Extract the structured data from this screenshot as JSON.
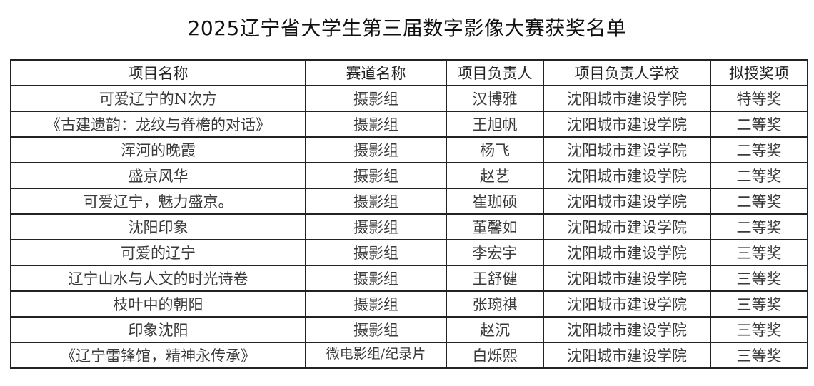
{
  "title": "2025辽宁省大学生第三届数字影像大赛获奖名单",
  "headers": [
    "项目名称",
    "赛道名称",
    "项目负责人",
    "项目负责人学校",
    "拟授奖项"
  ],
  "rows": [
    [
      "可爱辽宁的N次方",
      "摄影组",
      "汉博雅",
      "沈阳城市建设学院",
      "特等奖"
    ],
    [
      "《古建遗韵：龙纹与脊檐的对话》",
      "摄影组",
      "王旭帆",
      "沈阳城市建设学院",
      "二等奖"
    ],
    [
      "浑河的晚霞",
      "摄影组",
      "杨飞",
      "沈阳城市建设学院",
      "二等奖"
    ],
    [
      "盛京风华",
      "摄影组",
      "赵艺",
      "沈阳城市建设学院",
      "二等奖"
    ],
    [
      "可爱辽宁，魅力盛京。",
      "摄影组",
      "崔珈硕",
      "沈阳城市建设学院",
      "二等奖"
    ],
    [
      "沈阳印象",
      "摄影组",
      "董馨如",
      "沈阳城市建设学院",
      "二等奖"
    ],
    [
      "可爱的辽宁",
      "摄影组",
      "李宏宇",
      "沈阳城市建设学院",
      "三等奖"
    ],
    [
      "辽宁山水与人文的时光诗卷",
      "摄影组",
      "王舒健",
      "沈阳城市建设学院",
      "三等奖"
    ],
    [
      "枝叶中的朝阳",
      "摄影组",
      "张琬祺",
      "沈阳城市建设学院",
      "三等奖"
    ],
    [
      "印象沈阳",
      "摄影组",
      "赵沉",
      "沈阳城市建设学院",
      "三等奖"
    ],
    [
      "《辽宁雷锋馆，精神永传承》",
      "微电影组/纪录片",
      "白烁熙",
      "沈阳城市建设学院",
      "三等奖"
    ]
  ]
}
